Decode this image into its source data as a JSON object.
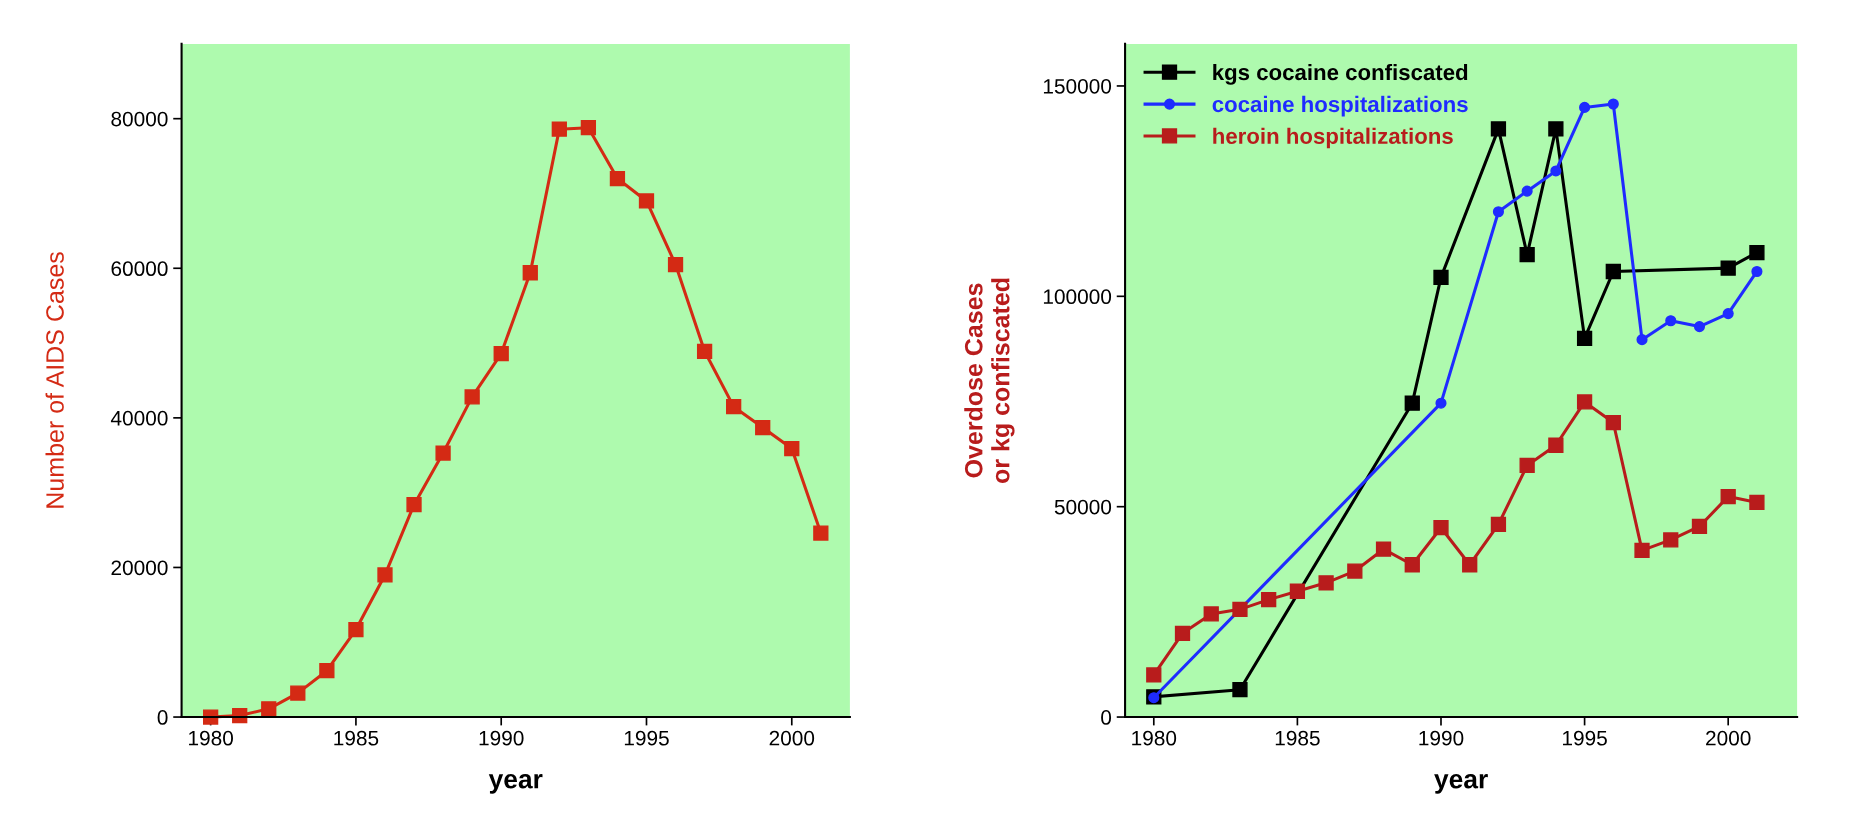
{
  "chart_data": [
    {
      "type": "line",
      "xlabel": "year",
      "ylabel": "Number of AIDS Cases",
      "x": [
        1980,
        1981,
        1982,
        1983,
        1984,
        1985,
        1986,
        1987,
        1988,
        1989,
        1990,
        1991,
        1992,
        1993,
        1994,
        1995,
        1996,
        1997,
        1998,
        1999,
        2000,
        2001
      ],
      "series": [
        {
          "color": "#d42a14",
          "values": [
            0,
            200,
            1100,
            3200,
            6200,
            11700,
            19000,
            28400,
            35300,
            42800,
            48600,
            59400,
            78600,
            78800,
            72000,
            69000,
            60500,
            48900,
            41500,
            38700,
            35900,
            24600
          ]
        }
      ],
      "xlim": [
        1979,
        2002
      ],
      "ylim": [
        0,
        90000
      ],
      "xticks": [
        1980,
        1985,
        1990,
        1995,
        2000
      ],
      "yticks": [
        0,
        20000,
        40000,
        60000,
        80000
      ],
      "grid": false,
      "legend": false,
      "marker": "square",
      "line_style": "solid"
    },
    {
      "type": "line",
      "xlabel": "year",
      "ylabel": "Overdose Cases\nor kg confiscated",
      "series": [
        {
          "name": "kgs cocaine confiscated",
          "color": "#000000",
          "x": [
            1980,
            1983,
            1989,
            1990,
            1992,
            1993,
            1994,
            1995,
            1996,
            2000,
            2001
          ],
          "values": [
            4800,
            6500,
            74600,
            104500,
            139800,
            109900,
            139800,
            90000,
            105900,
            106700,
            110400
          ]
        },
        {
          "name": "cocaine hospitalizations",
          "color": "#1f2bff",
          "marker": "circle",
          "x": [
            1980,
            1990,
            1992,
            1993,
            1994,
            1995,
            1996,
            1997,
            1998,
            1999,
            2000,
            2001
          ],
          "values": [
            4600,
            74600,
            120100,
            125000,
            129800,
            144900,
            145700,
            89700,
            94200,
            92800,
            95900,
            105900
          ]
        },
        {
          "name": "heroin hospitalizations",
          "color": "#b81c1c",
          "x": [
            1980,
            1981,
            1982,
            1983,
            1984,
            1985,
            1986,
            1987,
            1988,
            1989,
            1990,
            1991,
            1992,
            1993,
            1994,
            1995,
            1996,
            1997,
            1998,
            1999,
            2000,
            2001
          ],
          "values": [
            10000,
            19900,
            24500,
            25600,
            27900,
            29900,
            31900,
            34700,
            39900,
            36200,
            45000,
            36200,
            45800,
            59800,
            64600,
            74900,
            70000,
            39600,
            42100,
            45300,
            52400,
            51000
          ]
        }
      ],
      "xlim": [
        1979,
        2002.4
      ],
      "ylim": [
        0,
        160000
      ],
      "xticks": [
        1980,
        1985,
        1990,
        1995,
        2000
      ],
      "yticks": [
        0,
        50000,
        100000,
        150000
      ],
      "grid": false,
      "legend": "top left",
      "marker": "square",
      "line_style": "solid"
    }
  ]
}
